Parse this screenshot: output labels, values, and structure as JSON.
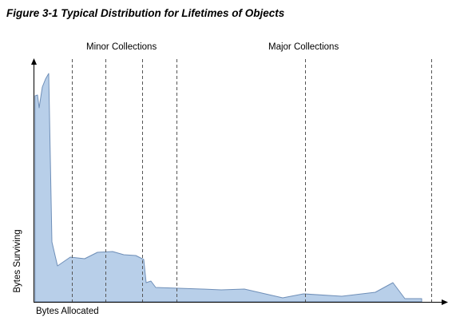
{
  "figure": {
    "title": "Figure 3-1 Typical Distribution for Lifetimes of Objects"
  },
  "regions": {
    "minor_label": "Minor Collections",
    "major_label": "Major Collections"
  },
  "axes": {
    "x_label": "Bytes Allocated",
    "y_label": "Bytes Surviving"
  },
  "colors": {
    "area_fill": "#b8cfe9",
    "area_stroke": "#6f8fb8",
    "axis": "#000000",
    "divider": "#555555"
  }
}
